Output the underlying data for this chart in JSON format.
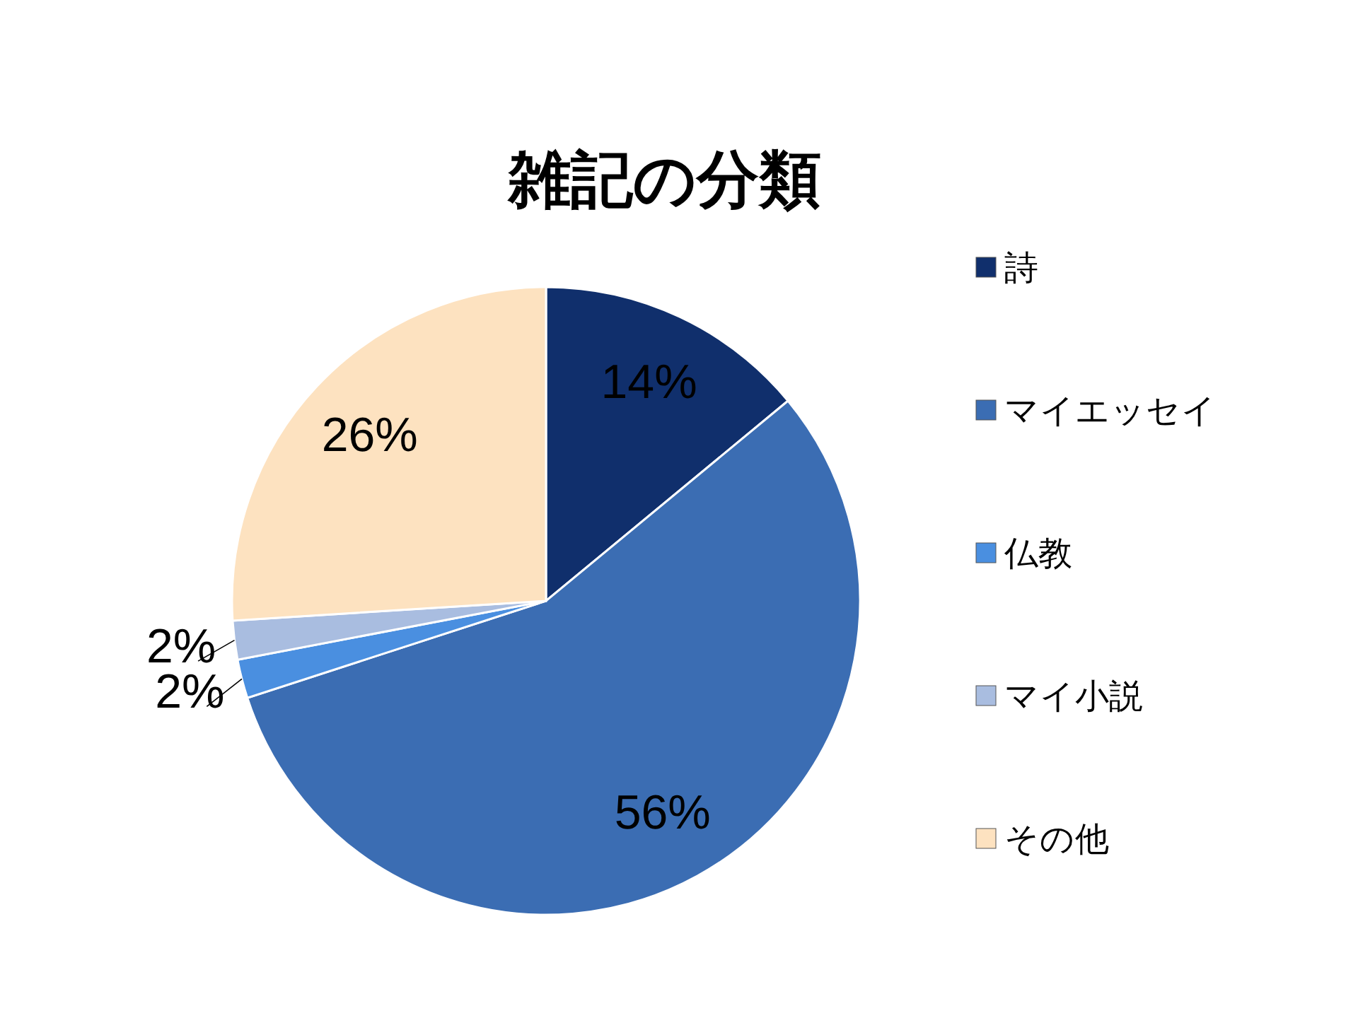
{
  "chart_data": {
    "type": "pie",
    "title": "雑記の分類",
    "categories": [
      "詩",
      "マイエッセイ",
      "仏教",
      "マイ小説",
      "その他"
    ],
    "values": [
      14,
      56,
      2,
      2,
      26
    ],
    "colors": [
      "#102f6c",
      "#3b6db3",
      "#4a8fe0",
      "#a9bde0",
      "#fde2c0"
    ],
    "value_labels": [
      "14%",
      "56%",
      "2%",
      "2%",
      "26%"
    ],
    "legend": "right"
  }
}
